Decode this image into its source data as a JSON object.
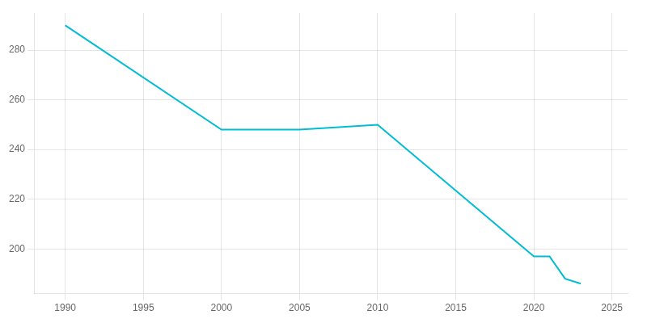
{
  "chart_data": {
    "type": "line",
    "x": [
      1990,
      2000,
      2005,
      2010,
      2020,
      2021,
      2022,
      2023
    ],
    "values": [
      290,
      248,
      248,
      250,
      197,
      197,
      188,
      186
    ],
    "color": "#00BCD4",
    "xlim": [
      1988,
      2026
    ],
    "xticks": [
      1990,
      1995,
      2000,
      2005,
      2010,
      2015,
      2020,
      2025
    ],
    "ylim": [
      182,
      295
    ],
    "yticks": [
      200,
      220,
      240,
      260,
      280
    ],
    "grid": true
  }
}
